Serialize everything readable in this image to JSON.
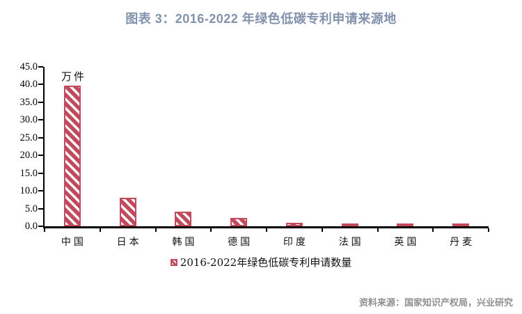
{
  "title": "图表 3：2016-2022 年绿色低碳专利申请来源地",
  "footer": {
    "source_note": "资料来源：国家知识产权局，兴业研究"
  },
  "chart_data": {
    "type": "bar",
    "title": "图表 3：2016-2022 年绿色低碳专利申请来源地",
    "unit_label": "万件",
    "categories": [
      "中国",
      "日本",
      "韩国",
      "德国",
      "印度",
      "法国",
      "英国",
      "丹麦"
    ],
    "values": [
      39.7,
      8.0,
      4.2,
      2.4,
      1.0,
      0.7,
      0.4,
      0.4
    ],
    "series_name": "2016-2022年绿色低碳专利申请数量",
    "ylim": [
      0,
      45
    ],
    "ytick_step": 5,
    "yticks": [
      "45.0",
      "40.0",
      "35.0",
      "30.0",
      "25.0",
      "20.0",
      "15.0",
      "10.0",
      "5.0",
      "0.0"
    ],
    "grid": false,
    "legend_position": "bottom",
    "bar_color": "#c14a5c",
    "title_color": "#8292ac"
  }
}
